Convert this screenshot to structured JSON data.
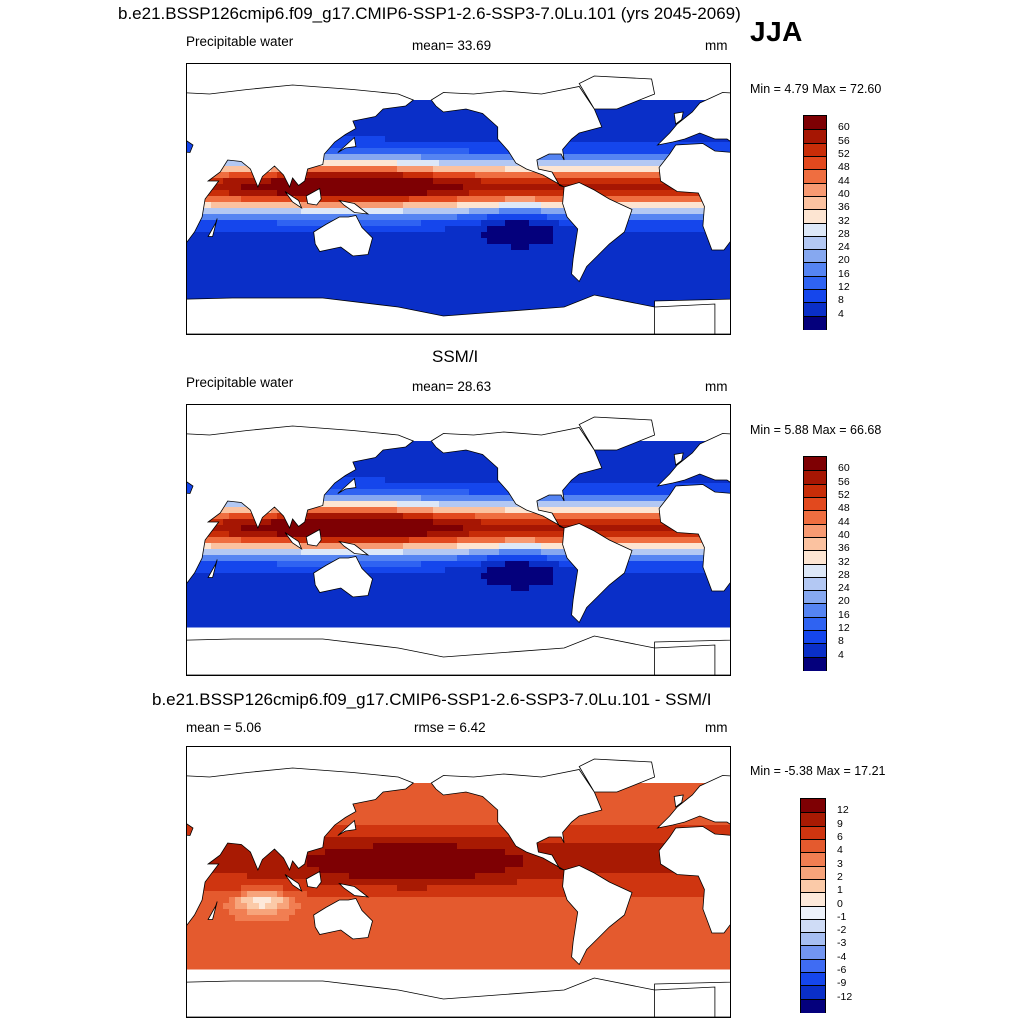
{
  "season": "JJA",
  "panels": [
    {
      "title": "b.e21.BSSP126cmip6.f09_g17.CMIP6-SSP1-2.6-SSP3-7.0Lu.101 (yrs 2045-2069)",
      "left_label": "Precipitable water",
      "center_label": "mean=  33.69",
      "units": "mm",
      "minmax": "Min =   4.79 Max =  72.60",
      "palette": "abs",
      "mask_land": true,
      "ice_band": false,
      "colorbar_labels": [
        "60",
        "56",
        "52",
        "48",
        "44",
        "40",
        "36",
        "32",
        "28",
        "24",
        "20",
        "16",
        "12",
        "8",
        "4"
      ]
    },
    {
      "title": "SSM/I",
      "left_label": "Precipitable water",
      "center_label": "mean=  28.63",
      "units": "mm",
      "minmax": "Min =   5.88 Max =  66.68",
      "palette": "abs",
      "mask_land": true,
      "ice_band": true,
      "colorbar_labels": [
        "60",
        "56",
        "52",
        "48",
        "44",
        "40",
        "36",
        "32",
        "28",
        "24",
        "20",
        "16",
        "12",
        "8",
        "4"
      ]
    },
    {
      "title": "b.e21.BSSP126cmip6.f09_g17.CMIP6-SSP1-2.6-SSP3-7.0Lu.101 - SSM/I",
      "left_label": "mean =   5.06",
      "center_label": "rmse =   6.42",
      "units": "mm",
      "minmax": "Min =  -5.38 Max =  17.21",
      "palette": "diff",
      "mask_land": true,
      "ice_band": true,
      "colorbar_labels": [
        "12",
        "9",
        "6",
        "4",
        "3",
        "2",
        "1",
        "0",
        "-1",
        "-2",
        "-3",
        "-4",
        "-6",
        "-9",
        "-12"
      ]
    }
  ],
  "colors": {
    "abs": [
      "#04007c",
      "#0a2fc8",
      "#1546ec",
      "#2f63f2",
      "#5584f2",
      "#86a8f0",
      "#b3c8f3",
      "#dde8f8",
      "#fde5d2",
      "#fbc2a0",
      "#f79a72",
      "#ef6e40",
      "#e2491e",
      "#c82d08",
      "#a61603",
      "#7e0003"
    ],
    "diff": [
      "#04007c",
      "#0a2fc8",
      "#1546ec",
      "#3f6cf3",
      "#7295f1",
      "#a6bef2",
      "#cfdcf6",
      "#edf2fb",
      "#fde9da",
      "#fbcaa8",
      "#f7a47b",
      "#f17e52",
      "#e45a2e",
      "#cf3510",
      "#a81a03",
      "#7e0003"
    ]
  }
}
